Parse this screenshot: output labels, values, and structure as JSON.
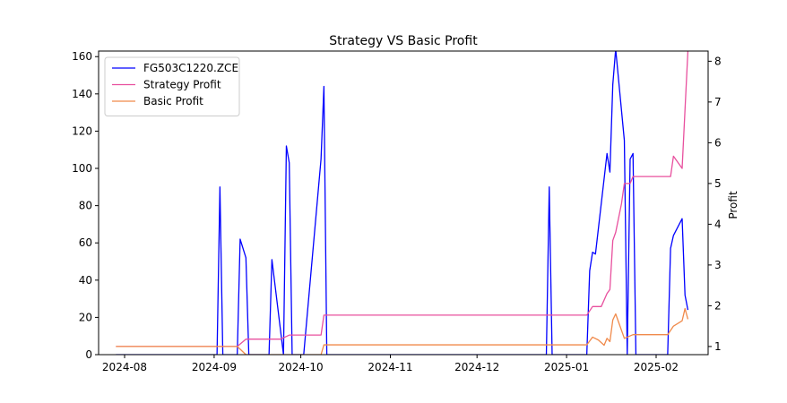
{
  "chart_data": {
    "type": "line",
    "title": "Strategy VS Basic Profit",
    "xlabel": "",
    "ylabel_left": "",
    "ylabel_right": "Profit",
    "x_ticks": [
      "2024-08",
      "2024-09",
      "2024-10",
      "2024-11",
      "2024-12",
      "2025-01",
      "2025-02"
    ],
    "y_left_ticks": [
      0,
      20,
      40,
      60,
      80,
      100,
      120,
      140,
      160
    ],
    "y_right_ticks": [
      1,
      2,
      3,
      4,
      5,
      6,
      7,
      8
    ],
    "ylim_left": [
      0,
      163
    ],
    "ylim_right": [
      0.8,
      8.25
    ],
    "xlim": [
      "2024-07-23",
      "2025-02-19"
    ],
    "grid": false,
    "legend_placement": "top-left",
    "series": [
      {
        "name": "FG503C1220.ZCE",
        "axis": "left",
        "color": "#0000ff",
        "points": [
          [
            "2024-07-29",
            0
          ],
          [
            "2024-09-02",
            0
          ],
          [
            "2024-09-03",
            90
          ],
          [
            "2024-09-04",
            0
          ],
          [
            "2024-09-09",
            0
          ],
          [
            "2024-09-10",
            62
          ],
          [
            "2024-09-12",
            52
          ],
          [
            "2024-09-13",
            0
          ],
          [
            "2024-09-20",
            0
          ],
          [
            "2024-09-21",
            51
          ],
          [
            "2024-09-25",
            0
          ],
          [
            "2024-09-26",
            112
          ],
          [
            "2024-09-27",
            103
          ],
          [
            "2024-09-28",
            0
          ],
          [
            "2024-10-02",
            0
          ],
          [
            "2024-10-08",
            105
          ],
          [
            "2024-10-09",
            144
          ],
          [
            "2024-10-10",
            0
          ],
          [
            "2024-12-25",
            0
          ],
          [
            "2024-12-26",
            90
          ],
          [
            "2024-12-27",
            0
          ],
          [
            "2025-01-08",
            0
          ],
          [
            "2025-01-09",
            45
          ],
          [
            "2025-01-10",
            55
          ],
          [
            "2025-01-11",
            54
          ],
          [
            "2025-01-15",
            108
          ],
          [
            "2025-01-16",
            98
          ],
          [
            "2025-01-17",
            145
          ],
          [
            "2025-01-18",
            164
          ],
          [
            "2025-01-21",
            115
          ],
          [
            "2025-01-22",
            0
          ],
          [
            "2025-01-23",
            105
          ],
          [
            "2025-01-24",
            108
          ],
          [
            "2025-01-25",
            0
          ],
          [
            "2025-02-05",
            0
          ],
          [
            "2025-02-06",
            57
          ],
          [
            "2025-02-07",
            64
          ],
          [
            "2025-02-10",
            73
          ],
          [
            "2025-02-11",
            32
          ],
          [
            "2025-02-12",
            24
          ]
        ]
      },
      {
        "name": "Strategy Profit",
        "axis": "right",
        "color": "#e8509e",
        "points": [
          [
            "2024-07-29",
            1.0
          ],
          [
            "2024-09-09",
            1.0
          ],
          [
            "2024-09-12",
            1.18
          ],
          [
            "2024-09-24",
            1.18
          ],
          [
            "2024-09-27",
            1.28
          ],
          [
            "2024-10-08",
            1.28
          ],
          [
            "2024-10-09",
            1.77
          ],
          [
            "2025-01-08",
            1.77
          ],
          [
            "2025-01-10",
            1.98
          ],
          [
            "2025-01-13",
            1.98
          ],
          [
            "2025-01-15",
            2.3
          ],
          [
            "2025-01-16",
            2.4
          ],
          [
            "2025-01-17",
            3.6
          ],
          [
            "2025-01-18",
            3.8
          ],
          [
            "2025-01-20",
            4.5
          ],
          [
            "2025-01-21",
            5.0
          ],
          [
            "2025-01-23",
            5.0
          ],
          [
            "2025-01-24",
            5.17
          ],
          [
            "2025-02-06",
            5.17
          ],
          [
            "2025-02-07",
            5.67
          ],
          [
            "2025-02-10",
            5.37
          ],
          [
            "2025-02-12",
            8.25
          ]
        ]
      },
      {
        "name": "Basic Profit",
        "axis": "right",
        "color": "#f08a4b",
        "points": [
          [
            "2024-07-29",
            1.0
          ],
          [
            "2024-09-09",
            1.0
          ],
          [
            "2024-09-12",
            0.8
          ],
          [
            "2024-09-24",
            0.8
          ],
          [
            "2024-09-27",
            0.8
          ],
          [
            "2024-10-08",
            0.8
          ],
          [
            "2024-10-09",
            1.04
          ],
          [
            "2025-01-08",
            1.04
          ],
          [
            "2025-01-10",
            1.23
          ],
          [
            "2025-01-12",
            1.16
          ],
          [
            "2025-01-14",
            1.03
          ],
          [
            "2025-01-15",
            1.2
          ],
          [
            "2025-01-16",
            1.12
          ],
          [
            "2025-01-17",
            1.65
          ],
          [
            "2025-01-18",
            1.8
          ],
          [
            "2025-01-19",
            1.6
          ],
          [
            "2025-01-21",
            1.2
          ],
          [
            "2025-01-24",
            1.29
          ],
          [
            "2025-02-05",
            1.29
          ],
          [
            "2025-02-07",
            1.5
          ],
          [
            "2025-02-10",
            1.63
          ],
          [
            "2025-02-11",
            1.93
          ],
          [
            "2025-02-12",
            1.67
          ]
        ]
      }
    ]
  }
}
